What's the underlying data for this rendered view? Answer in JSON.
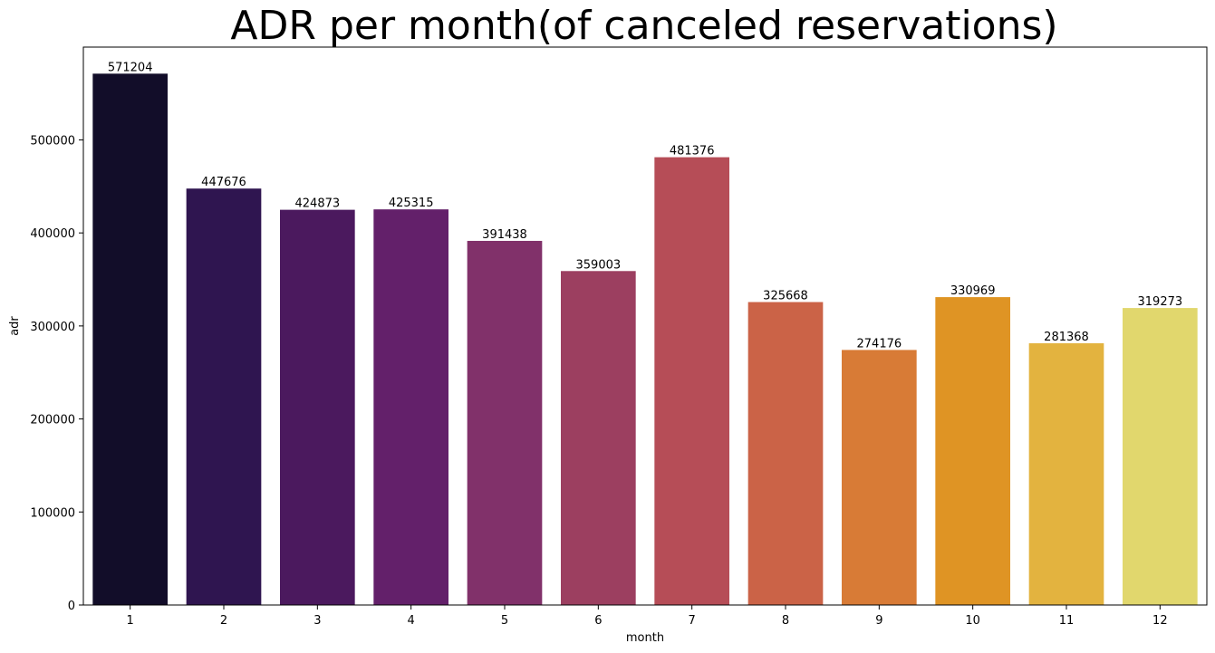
{
  "chart_data": {
    "type": "bar",
    "title": "ADR per month(of canceled reservations)",
    "xlabel": "month",
    "ylabel": "adr",
    "categories": [
      "1",
      "2",
      "3",
      "4",
      "5",
      "6",
      "7",
      "8",
      "9",
      "10",
      "11",
      "12"
    ],
    "values": [
      571204,
      447676,
      424873,
      425315,
      391438,
      359003,
      481376,
      325668,
      274176,
      330969,
      281368,
      319273
    ],
    "data_labels": [
      "571204",
      "447676",
      "424873",
      "425315",
      "391438",
      "359003",
      "481376",
      "325668",
      "274176",
      "330969",
      "281368",
      "319273"
    ],
    "colors": [
      "#120d29",
      "#2f1550",
      "#4b195e",
      "#63206a",
      "#81316a",
      "#9c3f60",
      "#b64d57",
      "#cb6347",
      "#d87b36",
      "#df9424",
      "#e3b33f",
      "#e1d76d"
    ],
    "ylim": [
      0,
      599764
    ],
    "yticks": [
      0,
      100000,
      200000,
      300000,
      400000,
      500000
    ],
    "ytick_labels": [
      "0",
      "100000",
      "200000",
      "300000",
      "400000",
      "500000"
    ],
    "grid": false,
    "legend": "none"
  }
}
